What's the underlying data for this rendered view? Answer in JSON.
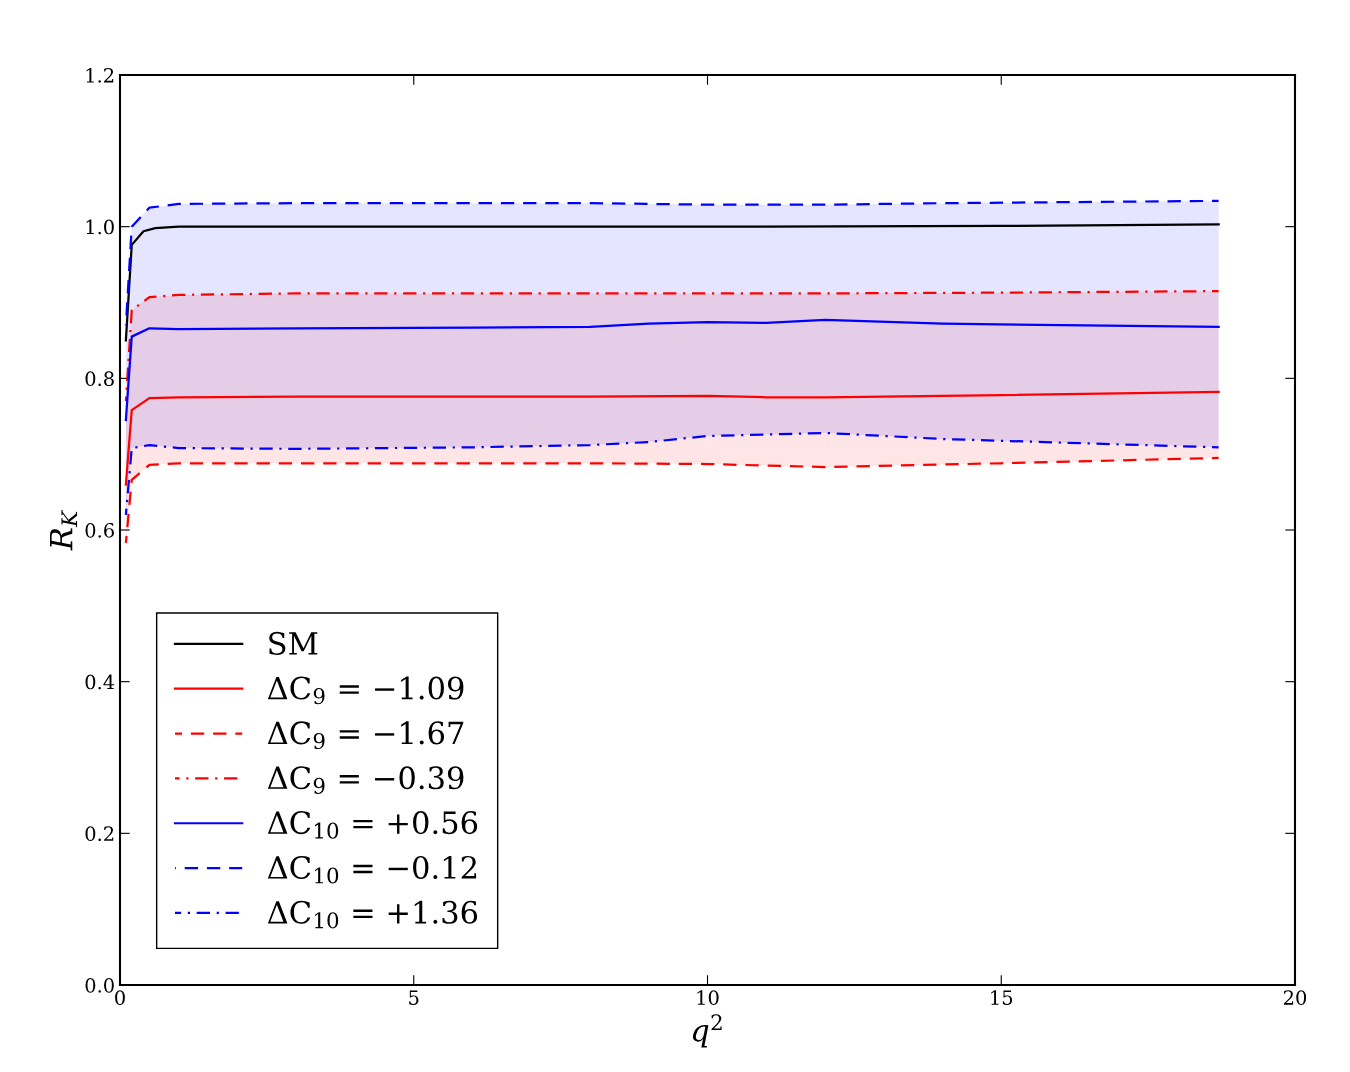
{
  "chart_data": {
    "type": "line",
    "xlabel": "q$^{2}$",
    "ylabel": "R$_{K}$",
    "xlim": [
      0,
      20
    ],
    "xticks": [
      0,
      5,
      10,
      15,
      20
    ],
    "ylim": [
      0,
      1.2
    ],
    "yticks": [
      {
        "value": 0,
        "label": "0.0"
      },
      {
        "value": 0.2,
        "label": "0.2"
      },
      {
        "value": 0.4,
        "label": "0.4"
      },
      {
        "value": 0.6,
        "label": "0.6"
      },
      {
        "value": 0.8,
        "label": "0.8"
      },
      {
        "value": 1.0,
        "label": "1.0"
      },
      {
        "value": 1.2,
        "label": "1.2"
      }
    ],
    "grid": false,
    "legend": "bottom left",
    "series": [
      {
        "name": "SM",
        "color": "#000000",
        "line_style": "solid",
        "x": [
          0.1,
          0.2,
          0.4,
          0.6,
          1,
          2,
          5,
          10,
          15,
          18.7
        ],
        "values": [
          0.85,
          0.976,
          0.994,
          0.998,
          1.0,
          1.0,
          1.0,
          1.0,
          1.001,
          1.003
        ]
      },
      {
        "name": "ΔC$_{9}$ = −1.09",
        "color": "#ff0000",
        "line_style": "solid",
        "x": [
          0.1,
          0.2,
          0.5,
          1,
          3,
          6,
          8,
          10,
          11,
          12,
          15,
          18.7
        ],
        "values": [
          0.66,
          0.758,
          0.774,
          0.775,
          0.776,
          0.776,
          0.776,
          0.777,
          0.775,
          0.775,
          0.778,
          0.782
        ],
        "lower": [
          0.583,
          0.666,
          0.686,
          0.688,
          0.688,
          0.688,
          0.688,
          0.687,
          0.685,
          0.683,
          0.688,
          0.695
        ],
        "upper": [
          0.77,
          0.89,
          0.907,
          0.91,
          0.912,
          0.912,
          0.912,
          0.912,
          0.912,
          0.912,
          0.913,
          0.915
        ]
      },
      {
        "name": "ΔC$_{9}$ = −1.67",
        "color": "#ff0000",
        "line_style": "dashed",
        "x": [
          0.1,
          0.2,
          0.5,
          1,
          3,
          6,
          8,
          10,
          11,
          12,
          15,
          18.7
        ],
        "values": [
          0.583,
          0.666,
          0.686,
          0.688,
          0.688,
          0.688,
          0.688,
          0.687,
          0.685,
          0.683,
          0.688,
          0.695
        ]
      },
      {
        "name": "ΔC$_{9}$ = −0.39",
        "color": "#ff0000",
        "line_style": "dashdot",
        "x": [
          0.1,
          0.2,
          0.5,
          1,
          3,
          6,
          8,
          10,
          11,
          12,
          15,
          18.7
        ],
        "values": [
          0.77,
          0.89,
          0.907,
          0.91,
          0.912,
          0.912,
          0.912,
          0.912,
          0.912,
          0.912,
          0.913,
          0.915
        ]
      },
      {
        "name": "ΔC$_{10}$ = +0.56",
        "color": "#0000ff",
        "line_style": "solid",
        "x": [
          0.1,
          0.2,
          0.5,
          1,
          3,
          6,
          8,
          9,
          10,
          11,
          12,
          14,
          18.7
        ],
        "values": [
          0.745,
          0.855,
          0.866,
          0.865,
          0.866,
          0.867,
          0.868,
          0.872,
          0.874,
          0.873,
          0.877,
          0.872,
          0.868
        ],
        "lower": [
          0.62,
          0.708,
          0.712,
          0.708,
          0.707,
          0.709,
          0.712,
          0.716,
          0.724,
          0.726,
          0.728,
          0.72,
          0.709
        ],
        "upper": [
          0.87,
          1.0,
          1.025,
          1.03,
          1.031,
          1.031,
          1.031,
          1.03,
          1.029,
          1.029,
          1.029,
          1.031,
          1.034
        ]
      },
      {
        "name": "ΔC$_{10}$ = −0.12",
        "color": "#0000ff",
        "line_style": "dashed",
        "x": [
          0.1,
          0.2,
          0.5,
          1,
          3,
          6,
          8,
          9,
          10,
          11,
          12,
          14,
          18.7
        ],
        "values": [
          0.87,
          1.0,
          1.025,
          1.03,
          1.031,
          1.031,
          1.031,
          1.03,
          1.029,
          1.029,
          1.029,
          1.031,
          1.034
        ]
      },
      {
        "name": "ΔC$_{10}$ = +1.36",
        "color": "#0000ff",
        "line_style": "dashdot",
        "x": [
          0.1,
          0.2,
          0.5,
          1,
          3,
          6,
          8,
          9,
          10,
          11,
          12,
          14,
          18.7
        ],
        "values": [
          0.62,
          0.708,
          0.712,
          0.708,
          0.707,
          0.709,
          0.712,
          0.716,
          0.724,
          0.726,
          0.728,
          0.72,
          0.709
        ]
      }
    ]
  }
}
